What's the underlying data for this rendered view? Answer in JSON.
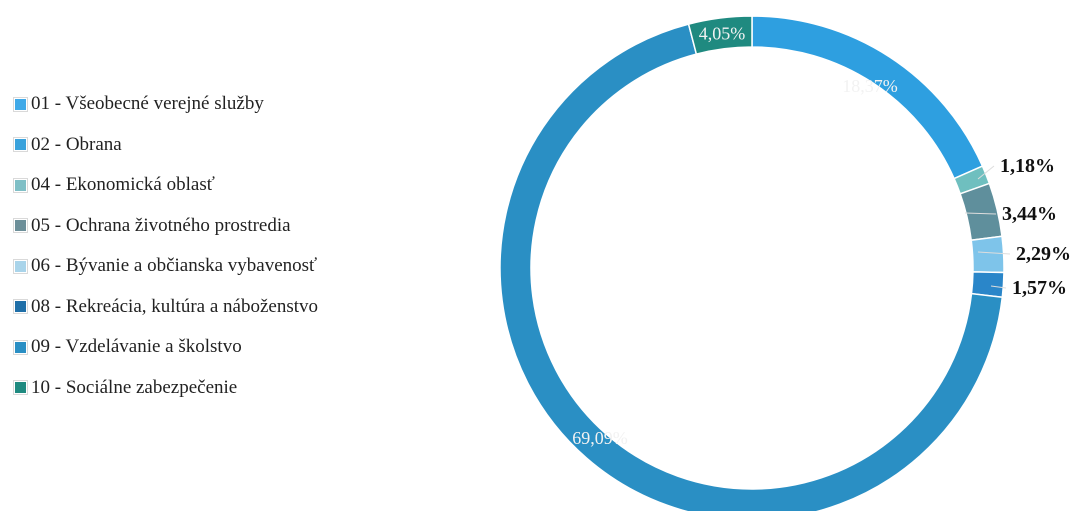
{
  "chart_data": {
    "type": "donut",
    "categories": [
      "01 - Všeobecné verejné služby",
      "02 - Obrana",
      "04 - Ekonomická oblasť",
      "05 - Ochrana životného prostredia",
      "06 - Bývanie a občianska vybavenosť",
      "08 - Rekreácia, kultúra a náboženstvo",
      "09 - Vzdelávanie a školstvo",
      "10 - Sociálne zabezpečenie"
    ],
    "slices": [
      {
        "category": "02 - Obrana",
        "value": 18.37,
        "label": "18,37%",
        "color": "#2e9fe0"
      },
      {
        "category": "04 - Ekonomická oblasť",
        "value": 1.18,
        "label": "1,18%",
        "color": "#6fbfbf"
      },
      {
        "category": "05 - Ochrana životného prostredia",
        "value": 3.44,
        "label": "3,44%",
        "color": "#5f8f9c"
      },
      {
        "category": "06 - Bývanie a občianska vybavenosť",
        "value": 2.29,
        "label": "2,29%",
        "color": "#7ec4ea"
      },
      {
        "category": "08 - Rekreácia, kultúra a náboženstvo",
        "value": 1.57,
        "label": "1,57%",
        "color": "#2a86c9"
      },
      {
        "category": "09 - Vzdelávanie a školstvo",
        "value": 69.09,
        "label": "69,09%",
        "color": "#2a8fc4"
      },
      {
        "category": "10 - Sociálne zabezpečenie",
        "value": 4.05,
        "label": "4,05%",
        "color": "#1f8a80"
      }
    ],
    "legend_colors": [
      "#3fa9e8",
      "#3aa2dc",
      "#7fbfc6",
      "#6c8f99",
      "#a9d4ea",
      "#1f6fa8",
      "#2a8fc4",
      "#1f8a80"
    ],
    "legend_position": "left"
  }
}
